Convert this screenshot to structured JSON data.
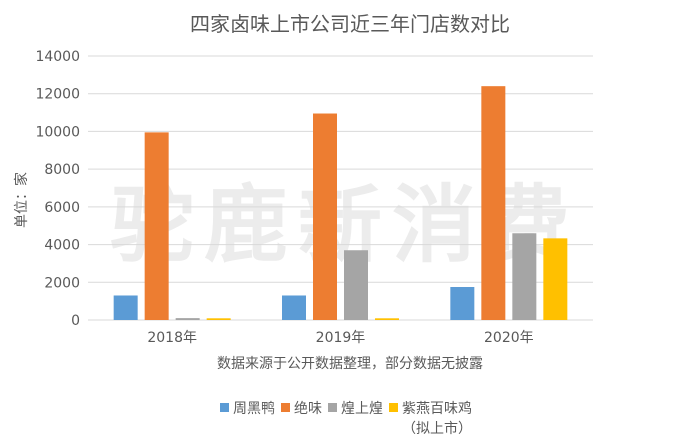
{
  "chart_data": {
    "type": "bar",
    "title": "四家卤味上市公司近三年门店数对比",
    "ylabel": "单位：家",
    "xlabel": "",
    "note": "数据来源于公开数据整理，部分数据无披露",
    "watermark": "驼鹿新消费",
    "categories": [
      "2018年",
      "2019年",
      "2020年"
    ],
    "ylim": [
      0,
      14000
    ],
    "yticks": [
      0,
      2000,
      4000,
      6000,
      8000,
      10000,
      12000,
      14000
    ],
    "grid": true,
    "legend_position": "bottom",
    "series": [
      {
        "name": "周黑鸭",
        "color": "#5b9bd5",
        "values": [
          1300,
          1300,
          1750
        ]
      },
      {
        "name": "绝味",
        "color": "#ed7d31",
        "values": [
          9950,
          10950,
          12400
        ]
      },
      {
        "name": "煌上煌",
        "color": "#a5a5a5",
        "values": [
          100,
          3700,
          4600
        ]
      },
      {
        "name": "紫燕百味鸡",
        "name_sub": "（拟上市）",
        "color": "#ffc000",
        "values": [
          90,
          90,
          4330
        ]
      }
    ]
  }
}
